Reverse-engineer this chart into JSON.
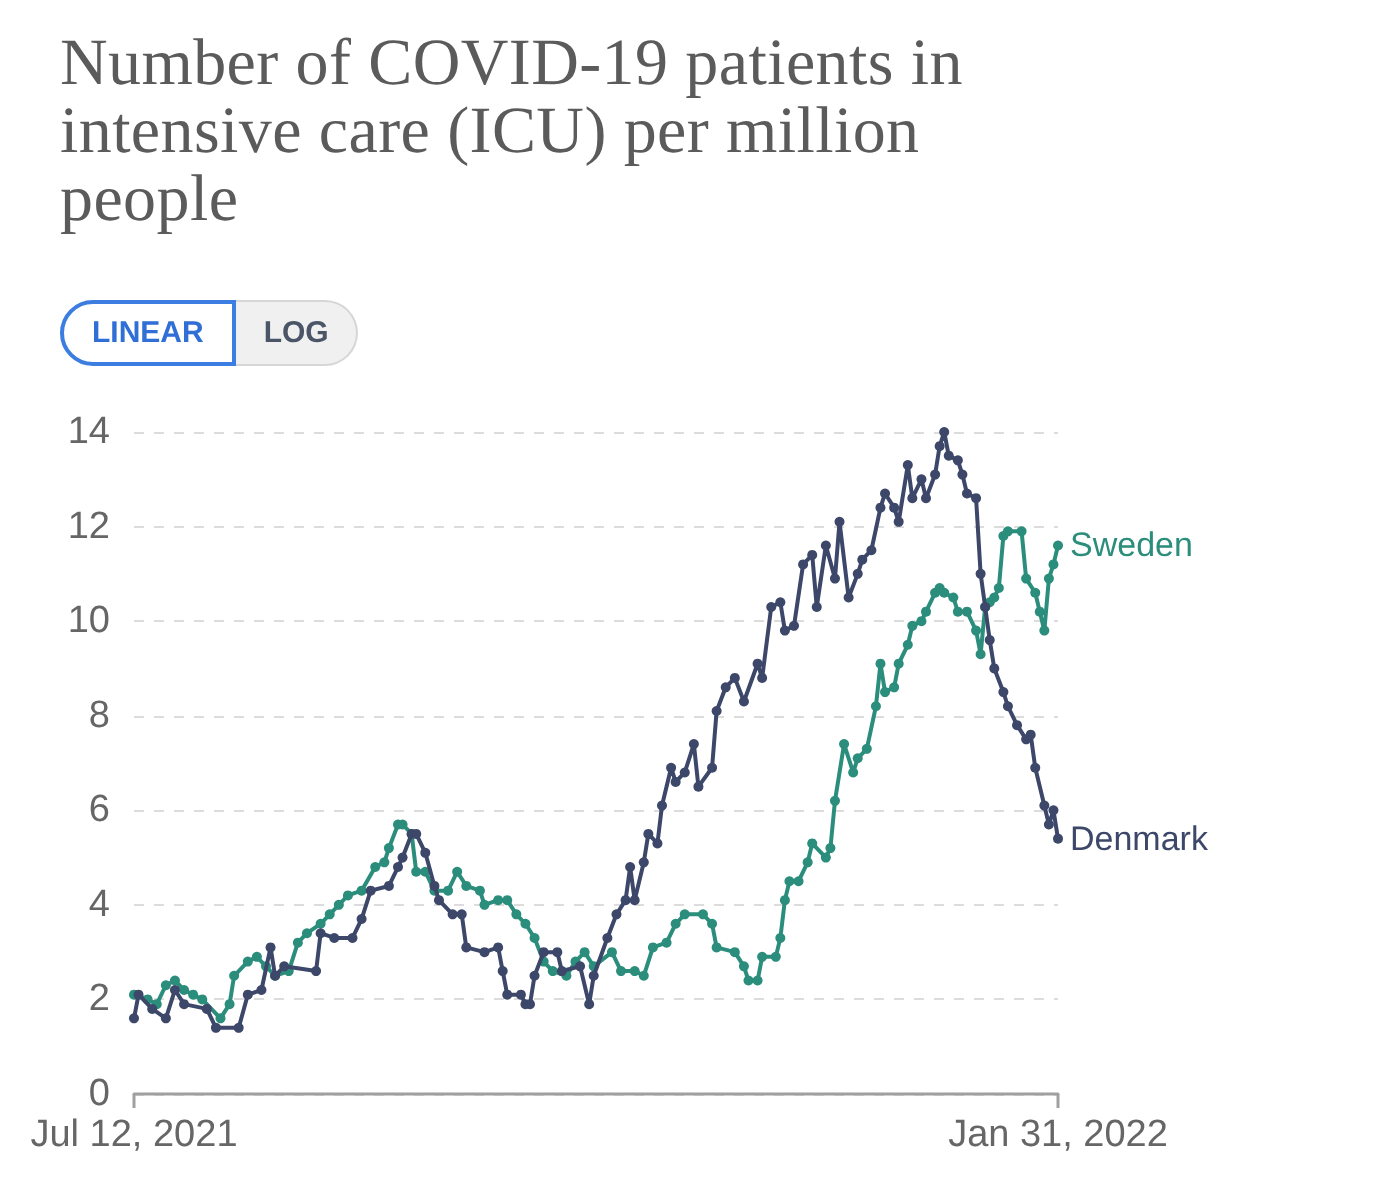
{
  "chart_data": {
    "type": "line",
    "title": "Number of COVID-19 patients in intensive care (ICU) per million people",
    "annotations": [
      "LINEAR",
      "LOG"
    ],
    "xlim": [
      "2021-07-12",
      "2022-01-31"
    ],
    "xticks": [
      {
        "value": "2021-07-12",
        "label": "Jul 12, 2021"
      },
      {
        "value": "2022-01-31",
        "label": "Jan 31, 2022"
      }
    ],
    "ylim": [
      0,
      14
    ],
    "yticks": [
      0,
      2,
      4,
      6,
      8,
      10,
      12,
      14
    ],
    "grid": "y",
    "marker": "circle",
    "line_style": "solid",
    "series": [
      {
        "name": "Sweden",
        "color": "#2b8d7b",
        "x": [
          "2021-07-12",
          "2021-07-15",
          "2021-07-17",
          "2021-07-19",
          "2021-07-21",
          "2021-07-23",
          "2021-07-25",
          "2021-07-27",
          "2021-07-31",
          "2021-08-02",
          "2021-08-03",
          "2021-08-06",
          "2021-08-08",
          "2021-08-10",
          "2021-08-12",
          "2021-08-15",
          "2021-08-17",
          "2021-08-19",
          "2021-08-22",
          "2021-08-24",
          "2021-08-26",
          "2021-08-28",
          "2021-08-31",
          "2021-09-03",
          "2021-09-05",
          "2021-09-06",
          "2021-09-08",
          "2021-09-09",
          "2021-09-11",
          "2021-09-12",
          "2021-09-14",
          "2021-09-16",
          "2021-09-19",
          "2021-09-21",
          "2021-09-23",
          "2021-09-26",
          "2021-09-27",
          "2021-09-30",
          "2021-10-02",
          "2021-10-04",
          "2021-10-06",
          "2021-10-08",
          "2021-10-10",
          "2021-10-12",
          "2021-10-15",
          "2021-10-17",
          "2021-10-19",
          "2021-10-21",
          "2021-10-25",
          "2021-10-27",
          "2021-10-30",
          "2021-11-01",
          "2021-11-03",
          "2021-11-06",
          "2021-11-08",
          "2021-11-10",
          "2021-11-14",
          "2021-11-16",
          "2021-11-17",
          "2021-11-21",
          "2021-11-23",
          "2021-11-24",
          "2021-11-26",
          "2021-11-27",
          "2021-11-30",
          "2021-12-01",
          "2021-12-02",
          "2021-12-03",
          "2021-12-05",
          "2021-12-07",
          "2021-12-08",
          "2021-12-11",
          "2021-12-12",
          "2021-12-13",
          "2021-12-15",
          "2021-12-17",
          "2021-12-18",
          "2021-12-20",
          "2021-12-22",
          "2021-12-23",
          "2021-12-24",
          "2021-12-26",
          "2021-12-27",
          "2021-12-29",
          "2021-12-30",
          "2022-01-01",
          "2022-01-02",
          "2022-01-04",
          "2022-01-05",
          "2022-01-06",
          "2022-01-08",
          "2022-01-09",
          "2022-01-11",
          "2022-01-13",
          "2022-01-14",
          "2022-01-15",
          "2022-01-16",
          "2022-01-17",
          "2022-01-18",
          "2022-01-19",
          "2022-01-20",
          "2022-01-23",
          "2022-01-24",
          "2022-01-26",
          "2022-01-27",
          "2022-01-28",
          "2022-01-29",
          "2022-01-30",
          "2022-01-31"
        ],
        "values": [
          2.1,
          2.0,
          1.9,
          2.3,
          2.4,
          2.2,
          2.1,
          2.0,
          1.6,
          1.9,
          2.5,
          2.8,
          2.9,
          2.7,
          2.5,
          2.6,
          3.2,
          3.4,
          3.6,
          3.8,
          4.0,
          4.2,
          4.3,
          4.8,
          4.9,
          5.2,
          5.7,
          5.7,
          5.5,
          4.7,
          4.7,
          4.3,
          4.3,
          4.7,
          4.4,
          4.3,
          4.0,
          4.1,
          4.1,
          3.8,
          3.6,
          3.3,
          2.8,
          2.6,
          2.5,
          2.8,
          3.0,
          2.7,
          3.0,
          2.6,
          2.6,
          2.5,
          3.1,
          3.2,
          3.6,
          3.8,
          3.8,
          3.6,
          3.1,
          3.0,
          2.7,
          2.4,
          2.4,
          2.9,
          2.9,
          3.3,
          4.1,
          4.5,
          4.5,
          4.9,
          5.3,
          5.0,
          5.2,
          6.2,
          7.4,
          6.8,
          7.1,
          7.3,
          8.2,
          9.1,
          8.5,
          8.6,
          9.1,
          9.5,
          9.9,
          10.0,
          10.2,
          10.6,
          10.7,
          10.6,
          10.5,
          10.2,
          10.2,
          9.8,
          9.3,
          10.3,
          10.4,
          10.5,
          10.7,
          11.8,
          11.9,
          11.9,
          10.9,
          10.6,
          10.2,
          9.8,
          10.9,
          11.2,
          11.6
        ]
      },
      {
        "name": "Denmark",
        "color": "#3c4769",
        "x": [
          "2021-07-12",
          "2021-07-13",
          "2021-07-16",
          "2021-07-19",
          "2021-07-21",
          "2021-07-23",
          "2021-07-28",
          "2021-07-30",
          "2021-08-04",
          "2021-08-06",
          "2021-08-09",
          "2021-08-11",
          "2021-08-12",
          "2021-08-14",
          "2021-08-21",
          "2021-08-22",
          "2021-08-25",
          "2021-08-29",
          "2021-08-31",
          "2021-09-02",
          "2021-09-06",
          "2021-09-08",
          "2021-09-09",
          "2021-09-11",
          "2021-09-12",
          "2021-09-14",
          "2021-09-16",
          "2021-09-17",
          "2021-09-20",
          "2021-09-22",
          "2021-09-23",
          "2021-09-27",
          "2021-09-30",
          "2021-10-01",
          "2021-10-02",
          "2021-10-05",
          "2021-10-06",
          "2021-10-07",
          "2021-10-08",
          "2021-10-10",
          "2021-10-13",
          "2021-10-14",
          "2021-10-18",
          "2021-10-20",
          "2021-10-21",
          "2021-10-24",
          "2021-10-26",
          "2021-10-28",
          "2021-10-29",
          "2021-10-30",
          "2021-11-01",
          "2021-11-02",
          "2021-11-04",
          "2021-11-05",
          "2021-11-07",
          "2021-11-08",
          "2021-11-10",
          "2021-11-12",
          "2021-11-13",
          "2021-11-16",
          "2021-11-17",
          "2021-11-19",
          "2021-11-21",
          "2021-11-23",
          "2021-11-26",
          "2021-11-27",
          "2021-11-29",
          "2021-12-01",
          "2021-12-02",
          "2021-12-04",
          "2021-12-06",
          "2021-12-08",
          "2021-12-09",
          "2021-12-11",
          "2021-12-13",
          "2021-12-14",
          "2021-12-16",
          "2021-12-18",
          "2021-12-19",
          "2021-12-21",
          "2021-12-23",
          "2021-12-24",
          "2021-12-26",
          "2021-12-27",
          "2021-12-29",
          "2021-12-30",
          "2022-01-01",
          "2022-01-02",
          "2022-01-04",
          "2022-01-05",
          "2022-01-06",
          "2022-01-07",
          "2022-01-09",
          "2022-01-10",
          "2022-01-11",
          "2022-01-13",
          "2022-01-14",
          "2022-01-15",
          "2022-01-16",
          "2022-01-17",
          "2022-01-19",
          "2022-01-20",
          "2022-01-22",
          "2022-01-24",
          "2022-01-25",
          "2022-01-26",
          "2022-01-28",
          "2022-01-29",
          "2022-01-30",
          "2022-01-31"
        ],
        "values": [
          1.6,
          2.1,
          1.8,
          1.6,
          2.2,
          1.9,
          1.8,
          1.4,
          1.4,
          2.1,
          2.2,
          3.1,
          2.5,
          2.7,
          2.6,
          3.4,
          3.3,
          3.3,
          3.7,
          4.3,
          4.4,
          4.8,
          5.0,
          5.5,
          5.5,
          5.1,
          4.4,
          4.1,
          3.8,
          3.8,
          3.1,
          3.0,
          3.1,
          2.6,
          2.1,
          2.1,
          1.9,
          1.9,
          2.5,
          3.0,
          3.0,
          2.6,
          2.7,
          1.9,
          2.5,
          3.3,
          3.8,
          4.1,
          4.8,
          4.1,
          4.9,
          5.5,
          5.3,
          6.1,
          6.9,
          6.6,
          6.8,
          7.4,
          6.5,
          6.9,
          8.1,
          8.6,
          8.8,
          8.3,
          9.1,
          8.8,
          10.3,
          10.4,
          9.8,
          9.9,
          11.2,
          11.4,
          10.3,
          11.6,
          10.9,
          12.1,
          10.5,
          11.0,
          11.3,
          11.5,
          12.4,
          12.7,
          12.4,
          12.1,
          13.3,
          12.6,
          13.0,
          12.6,
          13.1,
          13.7,
          14.0,
          13.5,
          13.4,
          13.1,
          12.7,
          12.6,
          11.0,
          10.3,
          9.6,
          9.0,
          8.5,
          8.2,
          7.8,
          7.5,
          7.6,
          6.9,
          6.1,
          5.7,
          6.0,
          5.4
        ]
      }
    ]
  }
}
